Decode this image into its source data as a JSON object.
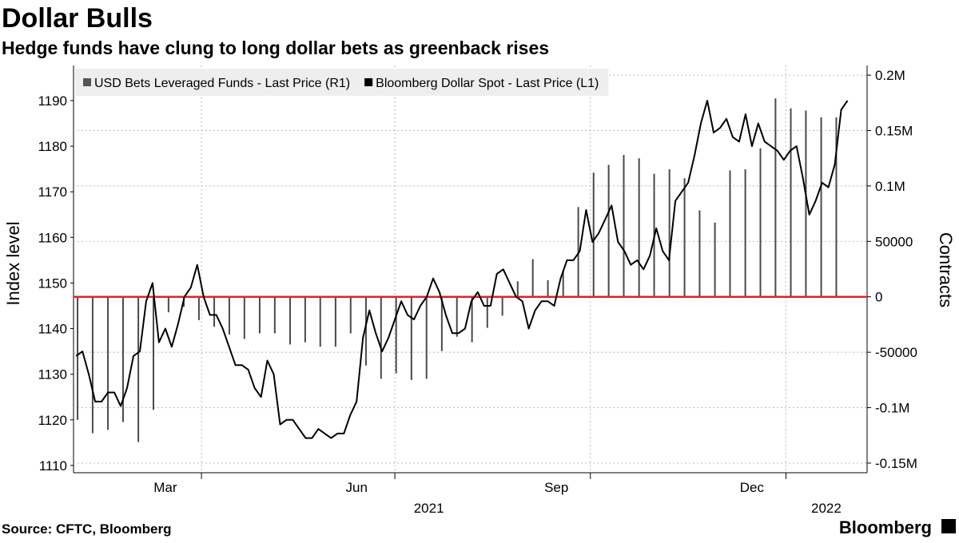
{
  "chart_data": {
    "type": "combo",
    "title": "Dollar Bulls",
    "subtitle": "Hedge funds have clung to long dollar bets as greenback rises",
    "source": "Source: CFTC, Bloomberg",
    "brand": "Bloomberg",
    "ylabel": "Index level",
    "y2label": "Contracts",
    "xlim": [
      29.8,
      403.2
    ],
    "xticks": [
      {
        "value": 73,
        "label": "Mar"
      },
      {
        "value": 163,
        "label": "Jun"
      },
      {
        "value": 257,
        "label": "Sep"
      },
      {
        "value": 349,
        "label": "Dec"
      }
    ],
    "year_ticks": [
      {
        "value": 197,
        "label": "2021"
      },
      {
        "value": 384,
        "label": "2022"
      }
    ],
    "xgrid": [
      90,
      181,
      273,
      365
    ],
    "ylim": [
      1108.4,
      1197.7
    ],
    "yticks": [
      1110,
      1120,
      1130,
      1140,
      1150,
      1160,
      1170,
      1180,
      1190
    ],
    "y2lim": [
      -158700,
      208700
    ],
    "y2ticks": [
      {
        "value": -150000,
        "label": "-0.15M"
      },
      {
        "value": -100000,
        "label": "-0.1M"
      },
      -50000,
      0,
      50000,
      {
        "value": 100000,
        "label": "0.1M"
      },
      {
        "value": 150000,
        "label": "0.15M"
      },
      {
        "value": 200000,
        "label": "0.2M"
      }
    ],
    "grid": true,
    "zero_line_color": "#e3202c",
    "legend": "top-left",
    "series": [
      {
        "name": "USD Bets Leveraged Funds - Last Price (R1)",
        "type": "bar",
        "axis": "y2",
        "color": "#4a4a4a",
        "x": [
          31.7,
          38.8,
          46.0,
          53.1,
          60.3,
          67.4,
          74.5,
          81.7,
          88.8,
          96.0,
          103.1,
          110.2,
          117.4,
          124.5,
          131.7,
          138.8,
          145.9,
          153.1,
          160.2,
          167.4,
          174.5,
          181.6,
          188.8,
          195.9,
          203.1,
          210.2,
          217.3,
          224.5,
          231.6,
          238.8,
          245.9,
          253.0,
          260.2,
          267.3,
          274.5,
          281.6,
          288.7,
          295.9,
          303.0,
          310.2,
          317.3,
          324.4,
          331.6,
          338.7,
          345.9,
          353.0,
          360.1,
          367.3,
          374.4,
          381.6,
          388.7
        ],
        "values": [
          -111000,
          -123000,
          -120000,
          -113000,
          -131000,
          -102000,
          -14000,
          -9000,
          -21000,
          -27000,
          -34000,
          -38000,
          -33000,
          -33000,
          -43000,
          -41000,
          -45000,
          -45000,
          -33000,
          -62000,
          -74000,
          -69000,
          -75000,
          -74000,
          -49000,
          -36000,
          -41000,
          -28000,
          -17000,
          14000,
          34000,
          15000,
          24000,
          81000,
          112000,
          119000,
          128000,
          125000,
          111000,
          115000,
          107000,
          78000,
          67000,
          114000,
          115000,
          134000,
          179000,
          170000,
          168000,
          162000,
          162000
        ]
      },
      {
        "name": "Bloomberg Dollar Spot - Last Price (L1)",
        "type": "line",
        "color": "#000000",
        "x": [
          31,
          34,
          37,
          40,
          43,
          46,
          49,
          52,
          55,
          58,
          61,
          64,
          67,
          70,
          73,
          76,
          79,
          82,
          85,
          88,
          91,
          94,
          97,
          100,
          103,
          106,
          109,
          112,
          115,
          118,
          121,
          124,
          127,
          130,
          133,
          136,
          139,
          142,
          145,
          148,
          151,
          154,
          157,
          160,
          163,
          166,
          169,
          172,
          175,
          178,
          181,
          184,
          187,
          190,
          193,
          196,
          199,
          202,
          205,
          208,
          211,
          214,
          217,
          220,
          223,
          226,
          229,
          232,
          235,
          238,
          241,
          244,
          247,
          250,
          253,
          256,
          259,
          262,
          265,
          268,
          271,
          274,
          277,
          280,
          283,
          286,
          289,
          292,
          295,
          298,
          301,
          304,
          307,
          310,
          313,
          316,
          319,
          322,
          325,
          328,
          331,
          334,
          337,
          340,
          343,
          346,
          349,
          352,
          355,
          358,
          361,
          364,
          367,
          370,
          373,
          376,
          379,
          382,
          385,
          388,
          391,
          394
        ],
        "values": [
          1134,
          1135,
          1130,
          1124,
          1124,
          1126,
          1126,
          1123,
          1127,
          1134,
          1135,
          1146,
          1150,
          1137,
          1140,
          1136,
          1141,
          1147,
          1149,
          1154,
          1147,
          1143,
          1143,
          1140,
          1136,
          1132,
          1132,
          1131,
          1127,
          1125,
          1133,
          1130,
          1119,
          1120,
          1120,
          1118,
          1116,
          1116,
          1118,
          1117,
          1116,
          1117,
          1117,
          1121,
          1124,
          1138,
          1144,
          1139,
          1135,
          1138,
          1142,
          1146,
          1143,
          1142,
          1145,
          1147,
          1151,
          1148,
          1143,
          1139,
          1139,
          1140,
          1146,
          1148,
          1145,
          1145,
          1152,
          1153,
          1150,
          1147,
          1146,
          1140,
          1144,
          1146,
          1146,
          1145,
          1151,
          1155,
          1155,
          1157,
          1166,
          1159,
          1161,
          1164,
          1167,
          1159,
          1157,
          1154,
          1155,
          1153,
          1156,
          1162,
          1157,
          1155,
          1168,
          1170,
          1172,
          1178,
          1185,
          1190,
          1183,
          1184,
          1186,
          1182,
          1181,
          1187,
          1180,
          1185,
          1181,
          1180,
          1179,
          1177,
          1179,
          1180,
          1173,
          1165,
          1168,
          1172,
          1171,
          1176,
          1188,
          1190
        ]
      }
    ]
  }
}
